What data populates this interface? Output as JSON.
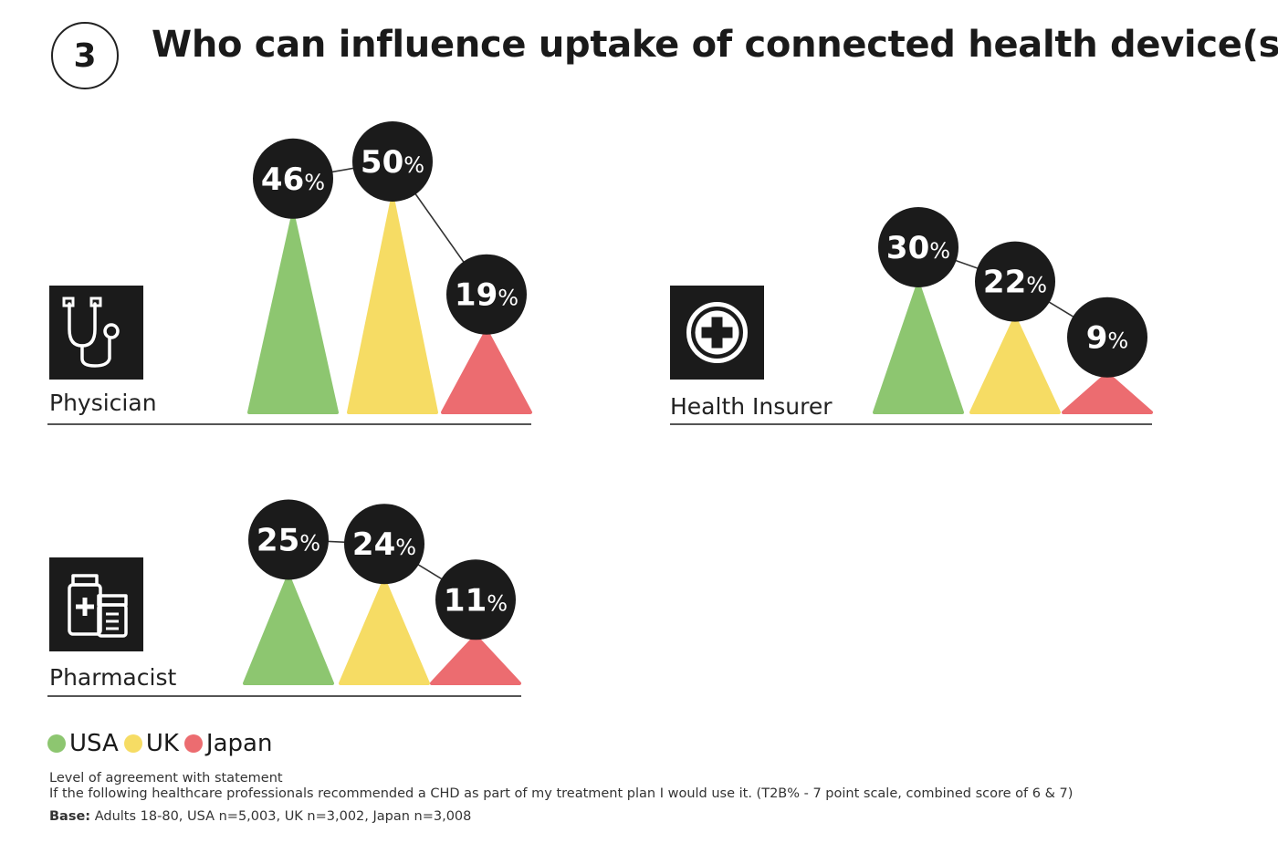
{
  "header": {
    "step_number": "3",
    "title": "Who can influence uptake of connected health device(s)?"
  },
  "colors": {
    "USA": "#8dc670",
    "UK": "#f6dc64",
    "Japan": "#ec6c70",
    "bubble": "#1b1b1b",
    "icon_bg": "#1b1b1b",
    "baseline": "#555555"
  },
  "chart_data": {
    "type": "bar",
    "mark_shape": "triangle",
    "categories": [
      "Physician",
      "Health Insurer",
      "Pharmacist"
    ],
    "series": [
      {
        "name": "USA",
        "values": [
          46,
          30,
          25
        ]
      },
      {
        "name": "UK",
        "values": [
          50,
          22,
          24
        ]
      },
      {
        "name": "Japan",
        "values": [
          19,
          9,
          11
        ]
      }
    ],
    "value_suffix": "%",
    "icons": [
      "stethoscope-icon",
      "medical-cross-icon",
      "medicine-bottles-icon"
    ],
    "legend": [
      "USA",
      "UK",
      "Japan"
    ],
    "legend_placement": "bottom-left",
    "grid": false
  },
  "footnotes": {
    "line1": "Level of agreement with statement",
    "line2": "If the following healthcare professionals recommended a CHD as part of my treatment plan I would use it. (T2B% - 7 point scale, combined score of 6 & 7)",
    "base_label": "Base:",
    "base_text": " Adults 18-80, USA n=5,003, UK n=3,002, Japan n=3,008"
  }
}
